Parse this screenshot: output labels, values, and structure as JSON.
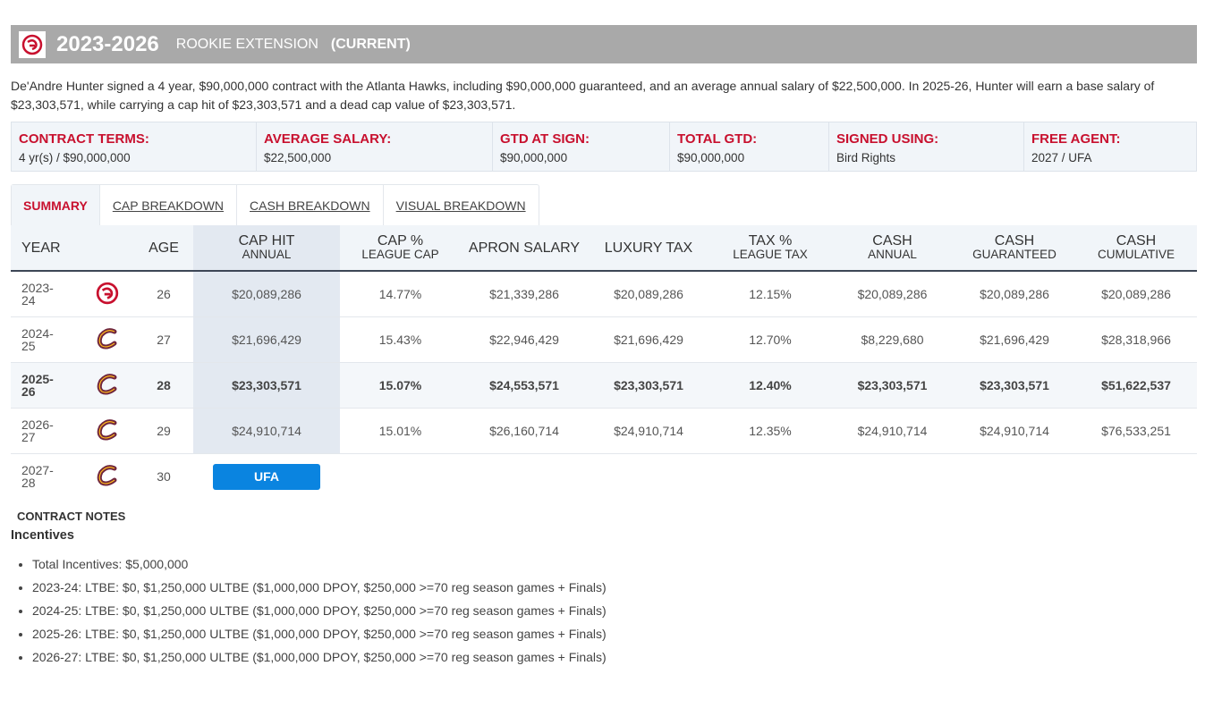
{
  "header": {
    "years": "2023-2026",
    "type": "ROOKIE EXTENSION",
    "status": "(CURRENT)"
  },
  "description": "De'Andre Hunter signed a 4 year, $90,000,000 contract with the Atlanta Hawks, including $90,000,000 guaranteed, and an average annual salary of $22,500,000. In 2025-26, Hunter will earn a base salary of $23,303,571, while carrying a cap hit of $23,303,571 and a dead cap value of $23,303,571.",
  "terms": [
    {
      "label": "CONTRACT TERMS:",
      "value": "4 yr(s) / $90,000,000"
    },
    {
      "label": "AVERAGE SALARY:",
      "value": "$22,500,000"
    },
    {
      "label": "GTD AT SIGN:",
      "value": "$90,000,000"
    },
    {
      "label": "TOTAL GTD:",
      "value": "$90,000,000"
    },
    {
      "label": "SIGNED USING:",
      "value": "Bird Rights"
    },
    {
      "label": "FREE AGENT:",
      "value": "2027 / UFA"
    }
  ],
  "tabs": [
    "SUMMARY",
    "CAP BREAKDOWN",
    "CASH BREAKDOWN",
    "VISUAL BREAKDOWN"
  ],
  "columns": {
    "year": "YEAR",
    "age": "AGE",
    "cap_hit": "CAP HIT",
    "cap_hit_sub": "ANNUAL",
    "cap_pct": "CAP %",
    "cap_pct_sub": "LEAGUE CAP",
    "apron": "APRON SALARY",
    "lux": "LUXURY TAX",
    "tax_pct": "TAX %",
    "tax_pct_sub": "LEAGUE TAX",
    "cash": "CASH",
    "cash_sub": "ANNUAL",
    "cash_g": "CASH",
    "cash_g_sub": "GUARANTEED",
    "cash_c": "CASH",
    "cash_c_sub": "CUMULATIVE"
  },
  "rows": [
    {
      "year": "2023-",
      "year2": "24",
      "team": "hawks",
      "age": "26",
      "cap_hit": "$20,089,286",
      "cap_pct": "14.77%",
      "apron": "$21,339,286",
      "lux": "$20,089,286",
      "tax_pct": "12.15%",
      "cash": "$20,089,286",
      "cash_g": "$20,089,286",
      "cash_c": "$20,089,286"
    },
    {
      "year": "2024-",
      "year2": "25",
      "team": "cavaliers",
      "age": "27",
      "cap_hit": "$21,696,429",
      "cap_pct": "15.43%",
      "apron": "$22,946,429",
      "lux": "$21,696,429",
      "tax_pct": "12.70%",
      "cash": "$8,229,680",
      "cash_g": "$21,696,429",
      "cash_c": "$28,318,966"
    },
    {
      "year": "2025-",
      "year2": "26",
      "team": "cavaliers",
      "age": "28",
      "cap_hit": "$23,303,571",
      "cap_pct": "15.07%",
      "apron": "$24,553,571",
      "lux": "$23,303,571",
      "tax_pct": "12.40%",
      "cash": "$23,303,571",
      "cash_g": "$23,303,571",
      "cash_c": "$51,622,537"
    },
    {
      "year": "2026-",
      "year2": "27",
      "team": "cavaliers",
      "age": "29",
      "cap_hit": "$24,910,714",
      "cap_pct": "15.01%",
      "apron": "$26,160,714",
      "lux": "$24,910,714",
      "tax_pct": "12.35%",
      "cash": "$24,910,714",
      "cash_g": "$24,910,714",
      "cash_c": "$76,533,251"
    },
    {
      "year": "2027-",
      "year2": "28",
      "team": "cavaliers",
      "age": "30",
      "status": "UFA"
    }
  ],
  "notes": {
    "heading": "CONTRACT NOTES",
    "subheading": "Incentives",
    "items": [
      "Total Incentives: $5,000,000",
      "2023-24: LTBE: $0, $1,250,000 ULTBE ($1,000,000 DPOY, $250,000 >=70 reg season games + Finals)",
      "2024-25: LTBE: $0, $1,250,000 ULTBE ($1,000,000 DPOY, $250,000 >=70 reg season games + Finals)",
      "2025-26: LTBE: $0, $1,250,000 ULTBE ($1,000,000 DPOY, $250,000 >=70 reg season games + Finals)",
      "2026-27: LTBE: $0, $1,250,000 ULTBE ($1,000,000 DPOY, $250,000 >=70 reg season games + Finals)"
    ]
  },
  "colors": {
    "accent": "#c8102e",
    "ufa": "#0a84e0",
    "header_bg": "#a9a9a9"
  }
}
